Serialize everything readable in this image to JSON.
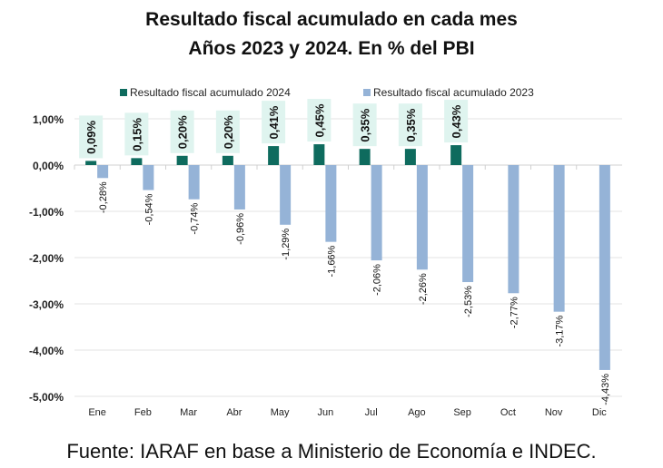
{
  "chart_data": {
    "type": "bar",
    "title": "Resultado fiscal acumulado en cada mes",
    "subtitle": "Años 2023 y 2024. En % del PBI",
    "source": "Fuente: IARAF en base a Ministerio de Economía e INDEC.",
    "categories": [
      "Ene",
      "Feb",
      "Mar",
      "Abr",
      "May",
      "Jun",
      "Jul",
      "Ago",
      "Sep",
      "Oct",
      "Nov",
      "Dic"
    ],
    "series": [
      {
        "name": "Resultado fiscal acumulado 2024",
        "color": "#0e6b5e",
        "values": [
          0.09,
          0.15,
          0.2,
          0.2,
          0.41,
          0.45,
          0.35,
          0.35,
          0.43,
          null,
          null,
          null
        ],
        "labels": [
          "0,09%",
          "0,15%",
          "0,20%",
          "0,20%",
          "0,41%",
          "0,45%",
          "0,35%",
          "0,35%",
          "0,43%",
          null,
          null,
          null
        ]
      },
      {
        "name": "Resultado fiscal acumulado 2023",
        "color": "#95b3d7",
        "values": [
          -0.28,
          -0.54,
          -0.74,
          -0.96,
          -1.29,
          -1.66,
          -2.06,
          -2.26,
          -2.53,
          -2.77,
          -3.17,
          -4.43
        ],
        "labels": [
          "-0,28%",
          "-0,54%",
          "-0,74%",
          "-0,96%",
          "-1,29%",
          "-1,66%",
          "-2,06%",
          "-2,26%",
          "-2,53%",
          "-2,77%",
          "-3,17%",
          "-4,43%"
        ]
      }
    ],
    "ylim": [
      -5,
      1
    ],
    "yticks": [
      1,
      0,
      -1,
      -2,
      -3,
      -4,
      -5
    ],
    "yticklabels": [
      "1,00%",
      "0,00%",
      "-1,00%",
      "-2,00%",
      "-3,00%",
      "-4,00%",
      "-5,00%"
    ],
    "grid": true,
    "legend": "top"
  }
}
